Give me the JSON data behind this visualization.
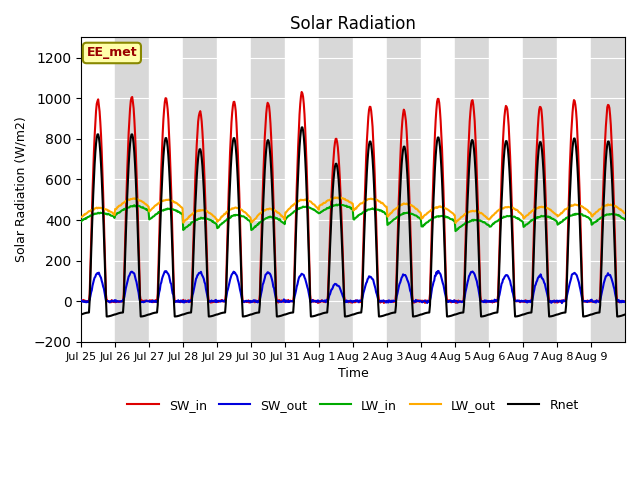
{
  "title": "Solar Radiation",
  "xlabel": "Time",
  "ylabel": "Solar Radiation (W/m2)",
  "ylim": [
    -200,
    1300
  ],
  "yticks": [
    -200,
    0,
    200,
    400,
    600,
    800,
    1000,
    1200
  ],
  "annotation": "EE_met",
  "series": [
    "SW_in",
    "SW_out",
    "LW_in",
    "LW_out",
    "Rnet"
  ],
  "colors": [
    "#dd0000",
    "#0000dd",
    "#00aa00",
    "#ffaa00",
    "#000000"
  ],
  "background_color": "#ffffff",
  "plot_bg_color": "#e8e8e8",
  "legend_position": "lower center",
  "dt_hours": 0.5,
  "start_day": 0,
  "num_days": 16,
  "xticklabels": [
    "Jul 25",
    "Jul 26",
    "Jul 27",
    "Jul 28",
    "Jul 29",
    "Jul 30",
    "Jul 31",
    "Aug 1",
    "Aug 2",
    "Aug 3",
    "Aug 4",
    "Aug 5",
    "Aug 6",
    "Aug 7",
    "Aug 8",
    "Aug 9"
  ],
  "sw_in_peaks": [
    990,
    1005,
    1000,
    935,
    985,
    980,
    1030,
    800,
    960,
    940,
    1000,
    990,
    965,
    960,
    990,
    970
  ],
  "sw_out_peaks": [
    140,
    145,
    148,
    143,
    143,
    143,
    135,
    85,
    120,
    130,
    145,
    148,
    128,
    128,
    140,
    135
  ],
  "lw_in_base": [
    405,
    435,
    415,
    365,
    375,
    365,
    420,
    445,
    415,
    390,
    380,
    360,
    380,
    380,
    390,
    390
  ],
  "lw_in_amp": [
    30,
    35,
    40,
    45,
    50,
    50,
    45,
    30,
    40,
    45,
    40,
    40,
    40,
    40,
    40,
    40
  ],
  "lw_out_base": [
    420,
    460,
    450,
    395,
    400,
    395,
    445,
    475,
    455,
    425,
    415,
    395,
    415,
    415,
    425,
    425
  ],
  "lw_out_amp": [
    40,
    45,
    50,
    55,
    60,
    60,
    55,
    35,
    50,
    55,
    50,
    50,
    50,
    50,
    50,
    50
  ],
  "rnet_night": -65,
  "linewidth": 1.5
}
